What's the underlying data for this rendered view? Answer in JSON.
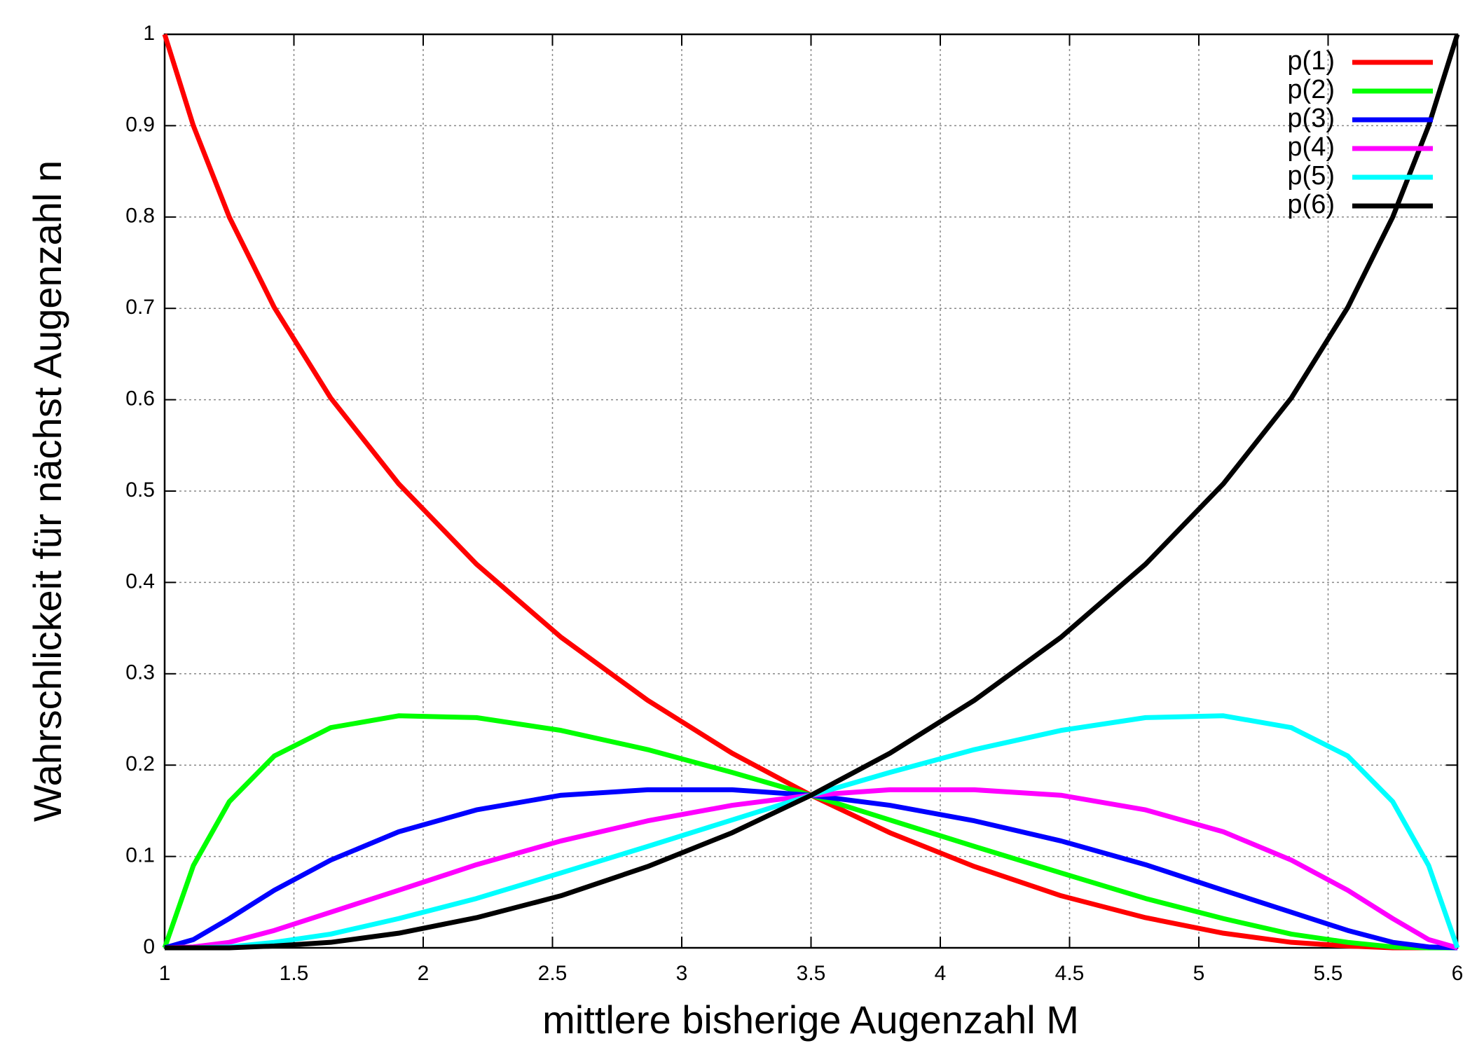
{
  "chart_data": {
    "type": "line",
    "xlabel": "mittlere bisherige Augenzahl M",
    "ylabel": "Wahrschlickeit für nächst Augenzahl n",
    "x": [
      1,
      1.111,
      1.25,
      1.424,
      1.642,
      1.905,
      2.206,
      2.533,
      2.868,
      3.195,
      3.5,
      3.805,
      4.132,
      4.467,
      4.794,
      5.095,
      5.358,
      5.576,
      5.75,
      5.889,
      6
    ],
    "series": [
      {
        "name": "p(1)",
        "color": "#ff0000",
        "values": [
          1,
          0.9,
          0.8,
          0.701,
          0.602,
          0.508,
          0.42,
          0.34,
          0.271,
          0.213,
          0.167,
          0.126,
          0.089,
          0.057,
          0.033,
          0.016,
          0.006,
          0.002,
          0,
          0,
          0
        ]
      },
      {
        "name": "p(2)",
        "color": "#00ff00",
        "values": [
          0,
          0.09,
          0.16,
          0.21,
          0.241,
          0.254,
          0.252,
          0.238,
          0.217,
          0.192,
          0.167,
          0.14,
          0.111,
          0.082,
          0.054,
          0.032,
          0.015,
          0.006,
          0.001,
          0,
          0
        ]
      },
      {
        "name": "p(3)",
        "color": "#0000ff",
        "values": [
          0,
          0.009,
          0.032,
          0.063,
          0.096,
          0.127,
          0.151,
          0.167,
          0.173,
          0.173,
          0.167,
          0.156,
          0.139,
          0.117,
          0.091,
          0.063,
          0.039,
          0.019,
          0.006,
          0.001,
          0
        ]
      },
      {
        "name": "p(4)",
        "color": "#ff00ff",
        "values": [
          0,
          0.001,
          0.006,
          0.019,
          0.039,
          0.063,
          0.091,
          0.117,
          0.139,
          0.156,
          0.167,
          0.173,
          0.173,
          0.167,
          0.151,
          0.127,
          0.096,
          0.063,
          0.032,
          0.009,
          0
        ]
      },
      {
        "name": "p(5)",
        "color": "#00ffff",
        "values": [
          0,
          0,
          0.001,
          0.006,
          0.015,
          0.032,
          0.054,
          0.082,
          0.111,
          0.14,
          0.167,
          0.192,
          0.217,
          0.238,
          0.252,
          0.254,
          0.241,
          0.21,
          0.16,
          0.09,
          0
        ]
      },
      {
        "name": "p(6)",
        "color": "#000000",
        "values": [
          0,
          0,
          0,
          0.002,
          0.006,
          0.016,
          0.033,
          0.057,
          0.089,
          0.126,
          0.167,
          0.213,
          0.271,
          0.34,
          0.42,
          0.508,
          0.602,
          0.701,
          0.8,
          0.9,
          1
        ]
      }
    ],
    "xlim": [
      1,
      6
    ],
    "xticks": [
      1,
      1.5,
      2,
      2.5,
      3,
      3.5,
      4,
      4.5,
      5,
      5.5,
      6
    ],
    "ylim": [
      0,
      1
    ],
    "yticks": [
      0,
      0.1,
      0.2,
      0.3,
      0.4,
      0.5,
      0.6,
      0.7,
      0.8,
      0.9,
      1
    ],
    "grid": true,
    "legend": "upper right"
  }
}
